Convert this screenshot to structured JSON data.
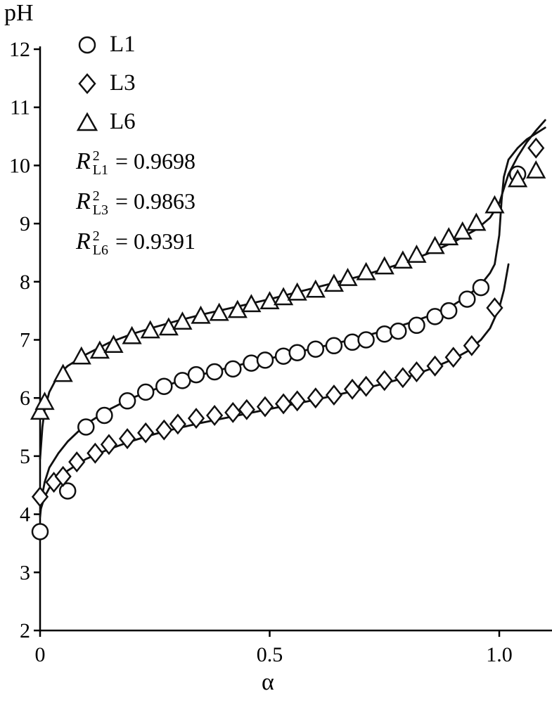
{
  "figure": {
    "y_axis_title": "pH",
    "x_axis_title": "α"
  },
  "legend": {
    "entries": [
      {
        "label": "L1",
        "marker": "circle"
      },
      {
        "label": "L3",
        "marker": "diamond"
      },
      {
        "label": "L6",
        "marker": "triangle"
      }
    ],
    "r_squared": [
      {
        "symbol": "R",
        "exponent": "2",
        "subscript": "L1",
        "equals_value": "= 0.9698"
      },
      {
        "symbol": "R",
        "exponent": "2",
        "subscript": "L3",
        "equals_value": "= 0.9863"
      },
      {
        "symbol": "R",
        "exponent": "2",
        "subscript": "L6",
        "equals_value": "= 0.9391"
      }
    ]
  },
  "chart_data": {
    "type": "scatter",
    "title": "",
    "xlabel": "α",
    "ylabel": "pH",
    "xlim": [
      0,
      1.115
    ],
    "ylim": [
      2,
      12
    ],
    "grid": false,
    "legend_position": "upper-left",
    "x_ticks": [
      0,
      0.5,
      1.0
    ],
    "x_tick_labels": [
      "0",
      "0.5",
      "1.0"
    ],
    "y_ticks": [
      2,
      3,
      4,
      5,
      6,
      7,
      8,
      9,
      10,
      11,
      12
    ],
    "y_tick_labels": [
      "2",
      "3",
      "4",
      "5",
      "6",
      "7",
      "8",
      "9",
      "10",
      "11",
      "12"
    ],
    "series": [
      {
        "name": "L1",
        "marker": "circle",
        "r_squared": 0.9698,
        "points": [
          [
            0,
            3.7
          ],
          [
            0.06,
            4.4
          ],
          [
            0.1,
            5.5
          ],
          [
            0.14,
            5.7
          ],
          [
            0.19,
            5.95
          ],
          [
            0.23,
            6.1
          ],
          [
            0.27,
            6.2
          ],
          [
            0.31,
            6.3
          ],
          [
            0.34,
            6.4
          ],
          [
            0.38,
            6.45
          ],
          [
            0.42,
            6.5
          ],
          [
            0.46,
            6.6
          ],
          [
            0.49,
            6.65
          ],
          [
            0.53,
            6.72
          ],
          [
            0.56,
            6.78
          ],
          [
            0.6,
            6.84
          ],
          [
            0.64,
            6.9
          ],
          [
            0.68,
            6.96
          ],
          [
            0.71,
            7.0
          ],
          [
            0.75,
            7.1
          ],
          [
            0.78,
            7.15
          ],
          [
            0.82,
            7.25
          ],
          [
            0.86,
            7.4
          ],
          [
            0.89,
            7.5
          ],
          [
            0.93,
            7.7
          ],
          [
            0.96,
            7.9
          ],
          [
            1.04,
            9.85
          ]
        ]
      },
      {
        "name": "L3",
        "marker": "diamond",
        "r_squared": 0.9863,
        "points": [
          [
            0,
            4.3
          ],
          [
            0.03,
            4.55
          ],
          [
            0.05,
            4.65
          ],
          [
            0.08,
            4.9
          ],
          [
            0.12,
            5.05
          ],
          [
            0.15,
            5.2
          ],
          [
            0.19,
            5.3
          ],
          [
            0.23,
            5.4
          ],
          [
            0.27,
            5.45
          ],
          [
            0.3,
            5.55
          ],
          [
            0.34,
            5.65
          ],
          [
            0.38,
            5.7
          ],
          [
            0.42,
            5.75
          ],
          [
            0.45,
            5.8
          ],
          [
            0.49,
            5.85
          ],
          [
            0.53,
            5.9
          ],
          [
            0.56,
            5.95
          ],
          [
            0.6,
            6.0
          ],
          [
            0.64,
            6.05
          ],
          [
            0.68,
            6.15
          ],
          [
            0.71,
            6.2
          ],
          [
            0.75,
            6.3
          ],
          [
            0.79,
            6.35
          ],
          [
            0.82,
            6.45
          ],
          [
            0.86,
            6.55
          ],
          [
            0.9,
            6.7
          ],
          [
            0.94,
            6.9
          ],
          [
            0.99,
            7.55
          ],
          [
            1.08,
            10.3
          ]
        ]
      },
      {
        "name": "L6",
        "marker": "triangle",
        "r_squared": 0.9391,
        "points": [
          [
            0,
            5.75
          ],
          [
            0.01,
            5.92
          ],
          [
            0.05,
            6.4
          ],
          [
            0.09,
            6.7
          ],
          [
            0.13,
            6.8
          ],
          [
            0.16,
            6.9
          ],
          [
            0.2,
            7.05
          ],
          [
            0.24,
            7.15
          ],
          [
            0.28,
            7.2
          ],
          [
            0.31,
            7.3
          ],
          [
            0.35,
            7.4
          ],
          [
            0.39,
            7.45
          ],
          [
            0.43,
            7.5
          ],
          [
            0.46,
            7.6
          ],
          [
            0.5,
            7.65
          ],
          [
            0.53,
            7.72
          ],
          [
            0.56,
            7.8
          ],
          [
            0.6,
            7.85
          ],
          [
            0.64,
            7.95
          ],
          [
            0.67,
            8.05
          ],
          [
            0.71,
            8.15
          ],
          [
            0.75,
            8.25
          ],
          [
            0.79,
            8.35
          ],
          [
            0.82,
            8.45
          ],
          [
            0.86,
            8.6
          ],
          [
            0.89,
            8.75
          ],
          [
            0.92,
            8.85
          ],
          [
            0.95,
            9.0
          ],
          [
            0.99,
            9.3
          ],
          [
            1.04,
            9.75
          ],
          [
            1.08,
            9.9
          ]
        ]
      }
    ],
    "fit_curves": [
      {
        "name": "L1",
        "points": [
          [
            0,
            3.95
          ],
          [
            0.005,
            4.35
          ],
          [
            0.01,
            4.55
          ],
          [
            0.02,
            4.8
          ],
          [
            0.04,
            5.05
          ],
          [
            0.06,
            5.25
          ],
          [
            0.1,
            5.55
          ],
          [
            0.15,
            5.8
          ],
          [
            0.2,
            6.0
          ],
          [
            0.25,
            6.15
          ],
          [
            0.3,
            6.28
          ],
          [
            0.35,
            6.4
          ],
          [
            0.4,
            6.5
          ],
          [
            0.45,
            6.6
          ],
          [
            0.5,
            6.68
          ],
          [
            0.55,
            6.77
          ],
          [
            0.6,
            6.86
          ],
          [
            0.65,
            6.95
          ],
          [
            0.7,
            7.05
          ],
          [
            0.75,
            7.16
          ],
          [
            0.8,
            7.28
          ],
          [
            0.85,
            7.42
          ],
          [
            0.9,
            7.6
          ],
          [
            0.93,
            7.75
          ],
          [
            0.96,
            7.95
          ],
          [
            0.98,
            8.15
          ],
          [
            0.99,
            8.3
          ],
          [
            1.0,
            8.8
          ],
          [
            1.005,
            9.4
          ],
          [
            1.01,
            9.8
          ],
          [
            1.02,
            10.1
          ],
          [
            1.04,
            10.3
          ],
          [
            1.06,
            10.45
          ],
          [
            1.08,
            10.55
          ],
          [
            1.1,
            10.65
          ]
        ]
      },
      {
        "name": "L3",
        "points": [
          [
            0,
            4.05
          ],
          [
            0.01,
            4.3
          ],
          [
            0.02,
            4.45
          ],
          [
            0.04,
            4.62
          ],
          [
            0.06,
            4.75
          ],
          [
            0.1,
            4.95
          ],
          [
            0.15,
            5.12
          ],
          [
            0.2,
            5.26
          ],
          [
            0.25,
            5.38
          ],
          [
            0.3,
            5.48
          ],
          [
            0.35,
            5.57
          ],
          [
            0.4,
            5.65
          ],
          [
            0.45,
            5.73
          ],
          [
            0.5,
            5.81
          ],
          [
            0.55,
            5.89
          ],
          [
            0.6,
            5.97
          ],
          [
            0.65,
            6.06
          ],
          [
            0.7,
            6.15
          ],
          [
            0.75,
            6.25
          ],
          [
            0.8,
            6.36
          ],
          [
            0.85,
            6.5
          ],
          [
            0.9,
            6.67
          ],
          [
            0.93,
            6.8
          ],
          [
            0.96,
            7.0
          ],
          [
            0.98,
            7.2
          ],
          [
            1.0,
            7.55
          ],
          [
            1.01,
            7.85
          ],
          [
            1.02,
            8.3
          ]
        ]
      },
      {
        "name": "L6",
        "points": [
          [
            0,
            4.95
          ],
          [
            0.005,
            5.5
          ],
          [
            0.01,
            5.8
          ],
          [
            0.02,
            6.1
          ],
          [
            0.04,
            6.4
          ],
          [
            0.06,
            6.55
          ],
          [
            0.1,
            6.75
          ],
          [
            0.15,
            6.95
          ],
          [
            0.2,
            7.1
          ],
          [
            0.25,
            7.22
          ],
          [
            0.3,
            7.33
          ],
          [
            0.35,
            7.43
          ],
          [
            0.4,
            7.52
          ],
          [
            0.45,
            7.61
          ],
          [
            0.5,
            7.7
          ],
          [
            0.55,
            7.8
          ],
          [
            0.6,
            7.9
          ],
          [
            0.65,
            8.0
          ],
          [
            0.7,
            8.1
          ],
          [
            0.75,
            8.22
          ],
          [
            0.8,
            8.35
          ],
          [
            0.85,
            8.5
          ],
          [
            0.9,
            8.68
          ],
          [
            0.95,
            8.9
          ],
          [
            0.98,
            9.1
          ],
          [
            1.0,
            9.35
          ],
          [
            1.01,
            9.6
          ],
          [
            1.02,
            9.85
          ],
          [
            1.04,
            10.15
          ],
          [
            1.06,
            10.4
          ],
          [
            1.08,
            10.6
          ],
          [
            1.1,
            10.78
          ]
        ]
      }
    ]
  }
}
